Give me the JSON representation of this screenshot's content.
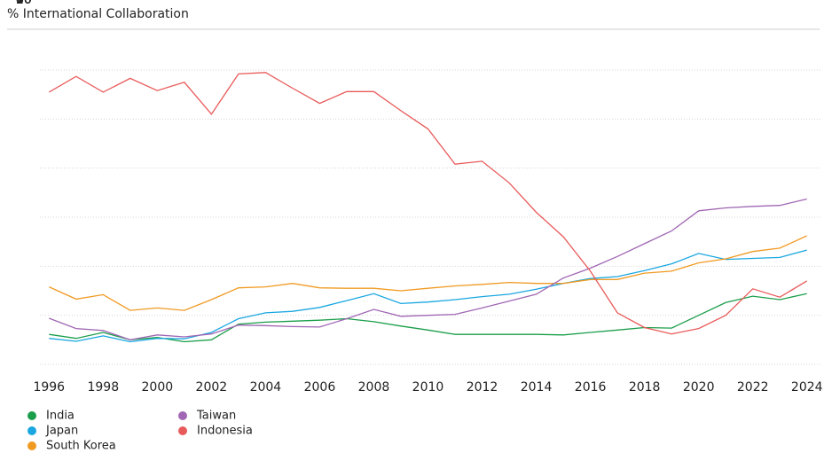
{
  "chart_data": {
    "type": "line",
    "title": "% International Collaboration",
    "x": [
      1996,
      1997,
      1998,
      1999,
      2000,
      2001,
      2002,
      2003,
      2004,
      2005,
      2006,
      2007,
      2008,
      2009,
      2010,
      2011,
      2012,
      2013,
      2014,
      2015,
      2016,
      2017,
      2018,
      2019,
      2020,
      2021,
      2022,
      2023,
      2024
    ],
    "series": [
      {
        "name": "India",
        "color": "#1a9e4a",
        "values": [
          16.1,
          15.3,
          16.5,
          15.0,
          15.5,
          14.6,
          15.0,
          18.2,
          18.6,
          18.8,
          19.0,
          19.3,
          18.7,
          17.8,
          17.0,
          16.1,
          16.1,
          16.1,
          16.1,
          16.0,
          16.5,
          17.0,
          17.5,
          17.4,
          20.0,
          22.6,
          23.9,
          23.2,
          24.4
        ]
      },
      {
        "name": "Japan",
        "color": "#1aa7e0",
        "values": [
          15.3,
          14.7,
          15.8,
          14.6,
          15.3,
          15.2,
          16.5,
          19.3,
          20.5,
          20.8,
          21.6,
          23.0,
          24.4,
          22.4,
          22.7,
          23.2,
          23.8,
          24.3,
          25.3,
          26.5,
          27.5,
          27.9,
          29.1,
          30.5,
          32.6,
          31.4,
          31.6,
          31.8,
          33.3
        ]
      },
      {
        "name": "South Korea",
        "color": "#f09a22",
        "values": [
          25.8,
          23.3,
          24.2,
          21.0,
          21.5,
          21.0,
          23.2,
          25.6,
          25.8,
          26.5,
          25.6,
          25.5,
          25.5,
          25.0,
          25.5,
          26.0,
          26.3,
          26.7,
          26.5,
          26.5,
          27.3,
          27.3,
          28.6,
          29.0,
          30.7,
          31.5,
          33.0,
          33.7,
          36.2
        ]
      },
      {
        "name": "Taiwan",
        "color": "#a066b4",
        "values": [
          19.4,
          17.3,
          16.9,
          15.0,
          16.0,
          15.6,
          16.2,
          18.0,
          17.9,
          17.7,
          17.6,
          19.3,
          21.2,
          19.8,
          20.0,
          20.2,
          21.5,
          22.9,
          24.3,
          27.6,
          29.6,
          32.0,
          34.6,
          37.2,
          41.3,
          41.9,
          42.2,
          42.4,
          43.7
        ]
      },
      {
        "name": "Indonesia",
        "color": "#e85a5a",
        "values": [
          65.5,
          68.7,
          65.5,
          68.3,
          65.8,
          67.5,
          61.0,
          69.2,
          69.5,
          66.3,
          63.2,
          65.6,
          65.6,
          61.7,
          58.0,
          50.8,
          51.4,
          47.0,
          41.0,
          36.0,
          29.0,
          20.5,
          17.5,
          16.2,
          17.3,
          20.0,
          25.4,
          23.7,
          27.0
        ]
      }
    ],
    "xlim": [
      1995.5,
      2024.5
    ],
    "xticks": [
      1996,
      1998,
      2000,
      2002,
      2004,
      2006,
      2008,
      2010,
      2012,
      2014,
      2016,
      2018,
      2020,
      2022,
      2024
    ],
    "ylim": [
      10,
      70
    ],
    "yticks": [
      10,
      20,
      30,
      40,
      50,
      60,
      70
    ],
    "grid": true
  }
}
